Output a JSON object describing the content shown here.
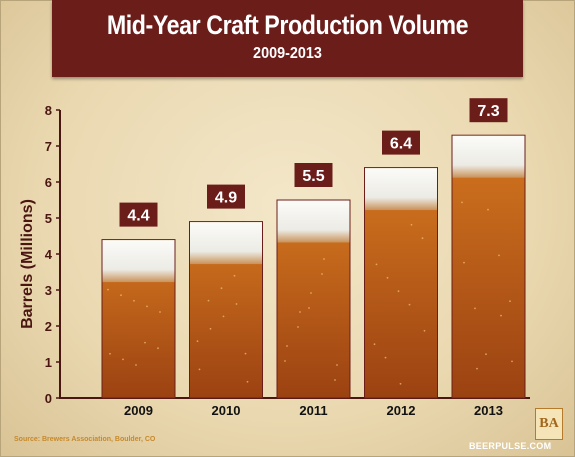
{
  "chart_data": {
    "type": "bar",
    "title": "Mid-Year Craft Production Volume",
    "subtitle": "2009-2013",
    "xlabel": "",
    "ylabel": "Barrels (Millions)",
    "categories": [
      "2009",
      "2010",
      "2011",
      "2012",
      "2013"
    ],
    "values": [
      4.4,
      4.9,
      5.5,
      6.4,
      7.3
    ],
    "value_labels": [
      "4.4",
      "4.9",
      "5.5",
      "6.4",
      "7.3"
    ],
    "ylim": [
      0,
      8
    ],
    "yticks": [
      "0",
      "1",
      "2",
      "3",
      "4",
      "5",
      "6",
      "7",
      "8"
    ],
    "grid": false,
    "colors": {
      "banner": "#6b1d1a",
      "axis": "#4a1612",
      "label_box": "#6b1d1a",
      "beer_top": "#d3761f",
      "beer_bottom": "#9b4212",
      "foam": "#f7f6f2"
    }
  },
  "source": "Source: Brewers Association, Boulder, CO",
  "logo_text": "BA",
  "watermark": "BEERPULSE.COM"
}
